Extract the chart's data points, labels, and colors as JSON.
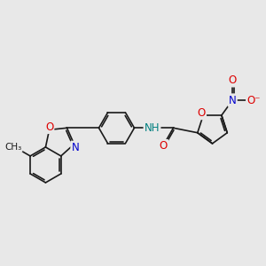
{
  "bg_color": "#e8e8e8",
  "bond_color": "#1a1a1a",
  "bond_width": 1.2,
  "atom_colors": {
    "O": "#dd0000",
    "N_blue": "#0000cc",
    "N_teal": "#008080",
    "H_teal": "#008080",
    "C": "#1a1a1a"
  },
  "font_size": 8.5,
  "methyl_label": "CH₃",
  "nh_label": "NH",
  "o_label": "O",
  "n_label": "N",
  "ominus_label": "O⁻"
}
